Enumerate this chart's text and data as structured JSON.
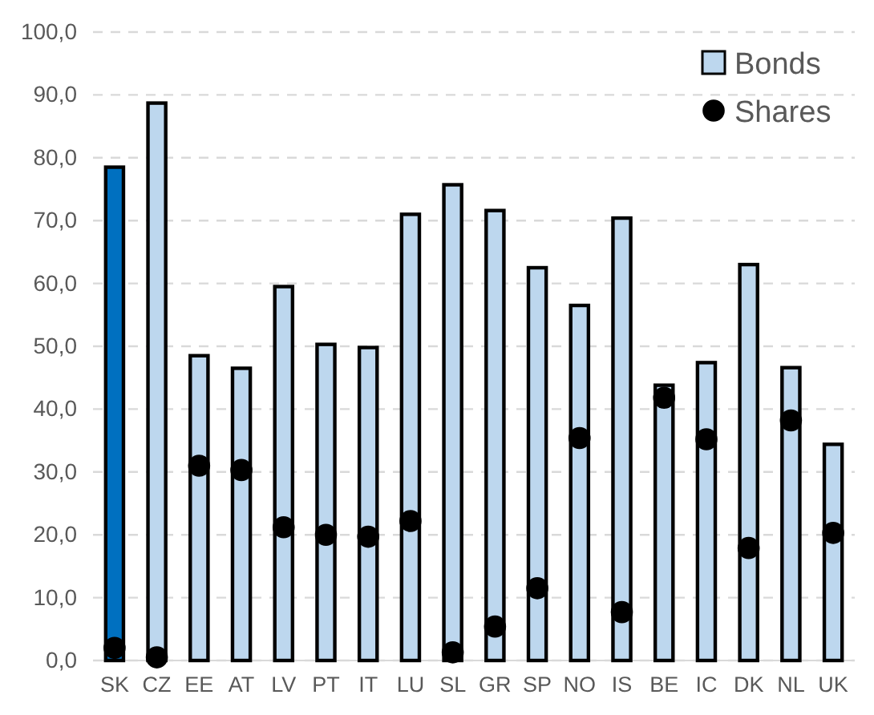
{
  "chart_data": {
    "type": "bar",
    "categories": [
      "SK",
      "CZ",
      "EE",
      "AT",
      "LV",
      "PT",
      "IT",
      "LU",
      "SL",
      "GR",
      "SP",
      "NO",
      "IS",
      "BE",
      "IC",
      "DK",
      "NL",
      "UK"
    ],
    "series": [
      {
        "name": "Bonds",
        "color": "#bdd7ee",
        "colors": [
          "#0070c0",
          "#bdd7ee",
          "#bdd7ee",
          "#bdd7ee",
          "#bdd7ee",
          "#bdd7ee",
          "#bdd7ee",
          "#bdd7ee",
          "#bdd7ee",
          "#bdd7ee",
          "#bdd7ee",
          "#bdd7ee",
          "#bdd7ee",
          "#bdd7ee",
          "#bdd7ee",
          "#bdd7ee",
          "#bdd7ee",
          "#bdd7ee"
        ],
        "values": [
          78.5,
          88.7,
          48.5,
          46.5,
          59.5,
          50.3,
          49.8,
          71.0,
          75.7,
          71.6,
          62.5,
          56.5,
          70.4,
          43.8,
          47.4,
          63.0,
          46.6,
          34.4
        ]
      },
      {
        "name": "Shares",
        "type": "scatter",
        "color": "#000000",
        "marker": "circle",
        "values": [
          2.0,
          0.5,
          31.0,
          30.3,
          21.2,
          20.0,
          19.7,
          22.2,
          1.3,
          5.4,
          11.5,
          35.4,
          7.7,
          41.8,
          35.2,
          17.9,
          38.2,
          20.3
        ]
      }
    ],
    "ylim": [
      0,
      100
    ],
    "yticks": [
      {
        "value": 0,
        "label": "0,0"
      },
      {
        "value": 10,
        "label": "10,0"
      },
      {
        "value": 20,
        "label": "20,0"
      },
      {
        "value": 30,
        "label": "30,0"
      },
      {
        "value": 40,
        "label": "40,0"
      },
      {
        "value": 50,
        "label": "50,0"
      },
      {
        "value": 60,
        "label": "60,0"
      },
      {
        "value": 70,
        "label": "70,0"
      },
      {
        "value": 80,
        "label": "80,0"
      },
      {
        "value": 90,
        "label": "90,0"
      },
      {
        "value": 100,
        "label": "100,0"
      }
    ],
    "grid": "y",
    "legend": "top right"
  }
}
